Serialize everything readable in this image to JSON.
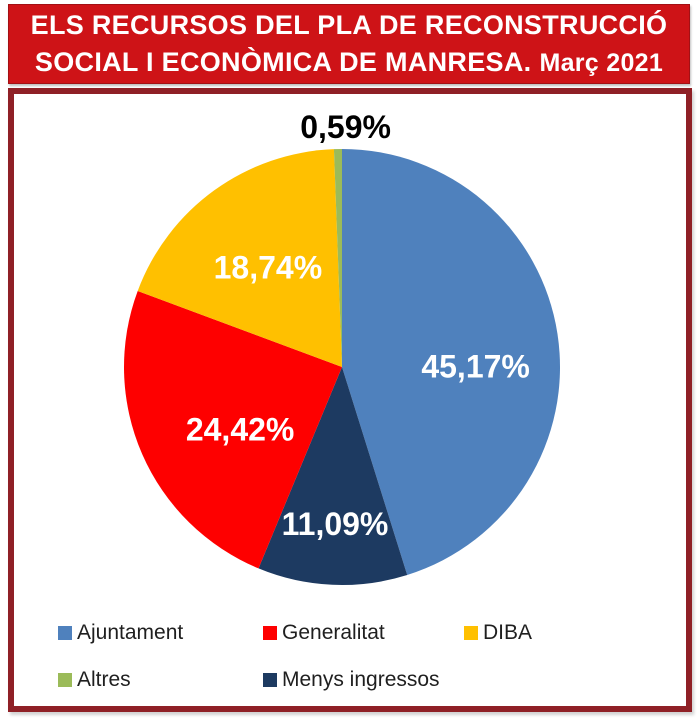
{
  "header": {
    "title_line1": "ELS RECURSOS DEL PLA DE RECONSTRUCCIÓ",
    "title_line2": "SOCIAL I ECONÒMICA DE MANRESA.",
    "date_suffix": "Març 2021",
    "bg_color": "#ce1317",
    "border_color": "#a31014",
    "text_color": "#ffffff"
  },
  "frame": {
    "border_color": "#8f2026",
    "background_color": "#ffffff"
  },
  "chart_data": {
    "type": "pie",
    "title": "ELS RECURSOS DEL PLA DE RECONSTRUCCIÓ SOCIAL I ECONÒMICA DE MANRESA. Març 2021",
    "units": "%",
    "decimal_style": "comma",
    "start_angle_deg": 0,
    "direction": "clockwise",
    "legend_position": "bottom",
    "slices_clockwise": [
      {
        "label": "Ajuntament",
        "value": 45.17,
        "display": "45,17%",
        "color": "#4f81bd",
        "label_color": "#ffffff",
        "label_placement": "inside"
      },
      {
        "label": "Menys ingressos",
        "value": 11.09,
        "display": "11,09%",
        "color": "#1d3a61",
        "label_color": "#ffffff",
        "label_placement": "inside"
      },
      {
        "label": "Generalitat",
        "value": 24.42,
        "display": "24,42%",
        "color": "#fe0000",
        "label_color": "#ffffff",
        "label_placement": "inside"
      },
      {
        "label": "DIBA",
        "value": 18.74,
        "display": "18,74%",
        "color": "#ffc000",
        "label_color": "#ffffff",
        "label_placement": "inside"
      },
      {
        "label": "Altres",
        "value": 0.59,
        "display": "0,59%",
        "color": "#9bbb59",
        "label_color": "#000000",
        "label_placement": "outside-top"
      }
    ],
    "legend": [
      {
        "label": "Ajuntament",
        "color": "#4f81bd"
      },
      {
        "label": "Generalitat",
        "color": "#fe0000"
      },
      {
        "label": "DIBA",
        "color": "#ffc000"
      },
      {
        "label": "Altres",
        "color": "#9bbb59"
      },
      {
        "label": "Menys ingressos",
        "color": "#1d3a61"
      }
    ]
  }
}
